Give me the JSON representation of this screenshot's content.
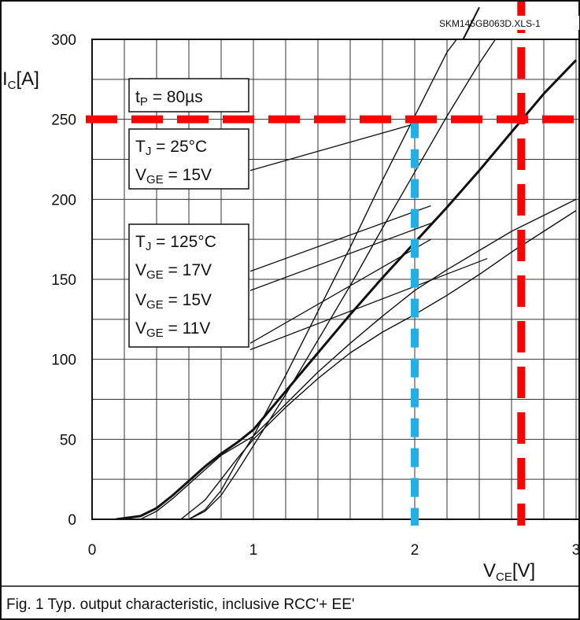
{
  "chart_data": {
    "type": "line",
    "file_id": "SKM145GB063D.XLS-1",
    "caption": "Fig. 1 Typ. output characteristic, inclusive RCC'+ EE'",
    "x_axis": {
      "label_main": "V",
      "label_sub": "CE",
      "label_unit": "[V]",
      "range": [
        0,
        3
      ],
      "ticks": [
        "0",
        "1",
        "2",
        "3"
      ],
      "tick_values": [
        0,
        1,
        2,
        3
      ]
    },
    "y_axis": {
      "label_main": "I",
      "label_sub": "C",
      "label_unit": "[A]",
      "range": [
        0,
        300
      ],
      "ticks": [
        "0",
        "50",
        "100",
        "150",
        "200",
        "250",
        "300"
      ],
      "tick_values": [
        0,
        50,
        100,
        150,
        200,
        250,
        300
      ]
    },
    "grid": true,
    "annotations": {
      "tp": {
        "main": "t",
        "sub": "P",
        "rest": " = 80µs"
      },
      "group25": [
        {
          "main": "T",
          "sub": "J",
          "rest": " = 25°C"
        },
        {
          "main": "V",
          "sub": "GE",
          "rest": " = 15V"
        }
      ],
      "group125": [
        {
          "main": "T",
          "sub": "J",
          "rest": " = 125°C"
        },
        {
          "main": "V",
          "sub": "GE",
          "rest": " = 17V"
        },
        {
          "main": "V",
          "sub": "GE",
          "rest": " = 15V"
        },
        {
          "main": "V",
          "sub": "GE",
          "rest": " = 11V"
        }
      ]
    },
    "series": [
      {
        "points": [
          [
            0.6,
            0
          ],
          [
            0.7,
            6
          ],
          [
            0.8,
            18
          ],
          [
            0.9,
            36
          ],
          [
            1.0,
            52
          ],
          [
            1.2,
            90
          ],
          [
            1.4,
            130
          ],
          [
            1.6,
            170
          ],
          [
            1.8,
            212
          ],
          [
            2.0,
            252
          ],
          [
            2.2,
            292
          ],
          [
            2.26,
            300
          ]
        ],
        "emphasis": false
      },
      {
        "points": [
          [
            0.6,
            0
          ],
          [
            0.7,
            5
          ],
          [
            0.8,
            15
          ],
          [
            0.9,
            30
          ],
          [
            1.0,
            46
          ],
          [
            1.2,
            78
          ],
          [
            1.4,
            112
          ],
          [
            1.6,
            146
          ],
          [
            1.8,
            182
          ],
          [
            2.0,
            217
          ],
          [
            2.2,
            252
          ],
          [
            2.4,
            285
          ],
          [
            2.5,
            300
          ]
        ],
        "emphasis": false
      },
      {
        "points": [
          [
            0.15,
            0
          ],
          [
            0.3,
            2
          ],
          [
            0.4,
            7
          ],
          [
            0.5,
            15
          ],
          [
            0.6,
            24
          ],
          [
            0.7,
            33
          ],
          [
            0.8,
            41
          ],
          [
            0.9,
            48
          ],
          [
            1.0,
            56
          ],
          [
            1.2,
            80
          ],
          [
            1.4,
            104
          ],
          [
            1.6,
            128
          ],
          [
            1.8,
            151
          ],
          [
            2.0,
            173
          ],
          [
            2.2,
            195
          ],
          [
            2.4,
            218
          ],
          [
            2.6,
            242
          ],
          [
            2.8,
            266
          ],
          [
            3.0,
            287
          ]
        ],
        "emphasis": true
      },
      {
        "points": [
          [
            0.3,
            0
          ],
          [
            0.4,
            5
          ],
          [
            0.5,
            13
          ],
          [
            0.6,
            22
          ],
          [
            0.7,
            31
          ],
          [
            0.8,
            40
          ],
          [
            0.9,
            46
          ],
          [
            1.0,
            52
          ],
          [
            1.2,
            72
          ],
          [
            1.4,
            92
          ],
          [
            1.6,
            110
          ],
          [
            1.8,
            127
          ],
          [
            2.0,
            143
          ],
          [
            2.2,
            156
          ],
          [
            2.4,
            168
          ],
          [
            2.6,
            180
          ],
          [
            2.8,
            190
          ],
          [
            3.0,
            200
          ]
        ],
        "emphasis": false
      },
      {
        "points": [
          [
            0.55,
            0
          ],
          [
            0.7,
            12
          ],
          [
            0.8,
            25
          ],
          [
            0.9,
            38
          ],
          [
            1.0,
            50
          ],
          [
            1.2,
            70
          ],
          [
            1.4,
            88
          ],
          [
            1.6,
            104
          ],
          [
            1.8,
            117
          ],
          [
            2.0,
            128
          ],
          [
            2.2,
            140
          ],
          [
            2.4,
            153
          ],
          [
            2.6,
            167
          ],
          [
            2.8,
            180
          ],
          [
            3.0,
            193
          ]
        ],
        "emphasis": false
      }
    ],
    "leader_lines": [
      [
        [
          0.98,
          218
        ],
        [
          2.1,
          250
        ]
      ],
      [
        [
          0.98,
          155
        ],
        [
          2.1,
          196
        ]
      ],
      [
        [
          0.98,
          143
        ],
        [
          2.1,
          185
        ]
      ],
      [
        [
          0.98,
          110
        ],
        [
          2.1,
          175
        ]
      ],
      [
        [
          0.98,
          106
        ],
        [
          2.45,
          163
        ]
      ]
    ],
    "red_lines": {
      "y": 250,
      "x": 2.66
    },
    "blue_line": {
      "x": 2.0,
      "y": 250
    },
    "black_pointer": [
      [
        2.3,
        300
      ],
      [
        2.4,
        320
      ]
    ],
    "colors": {
      "red": "#ff0000",
      "blue": "#1fb0e8",
      "curve": "#111111",
      "grid": "#333333"
    }
  }
}
